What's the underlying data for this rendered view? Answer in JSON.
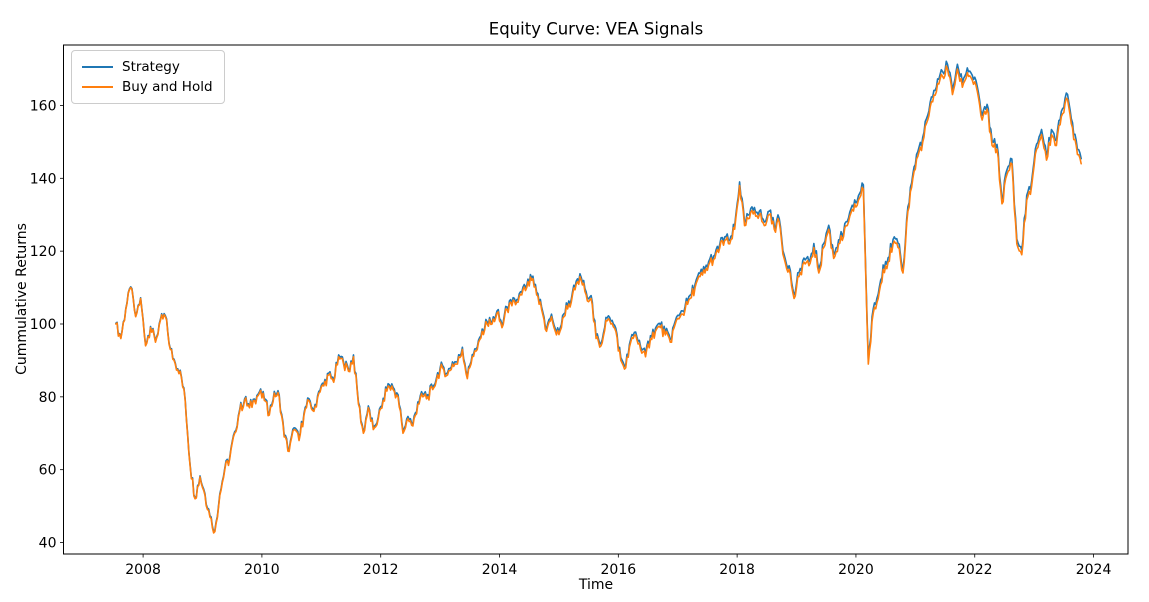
{
  "figure": {
    "background": "#ffffff",
    "spine_color": "#000000",
    "tick_color": "#000000",
    "text_color": "#000000"
  },
  "chart_data": {
    "type": "line",
    "title": "Equity Curve: VEA Signals",
    "xlabel": "Time",
    "ylabel": "Cummulative Returns",
    "xlim": [
      2006.66,
      2024.58
    ],
    "ylim": [
      36.85,
      176.6
    ],
    "x_ticks": [
      2008,
      2010,
      2012,
      2014,
      2016,
      2018,
      2020,
      2022,
      2024
    ],
    "y_ticks": [
      40,
      60,
      80,
      100,
      120,
      140,
      160
    ],
    "grid": false,
    "legend_position": "upper-left",
    "x_start": 2007.5417,
    "x_step_years": 0.083333,
    "series": [
      {
        "name": "Strategy",
        "color": "#1f77b4",
        "values": [
          100.2,
          96.2,
          104.2,
          110.2,
          102.2,
          107.2,
          94.3,
          99.3,
          95.3,
          101.3,
          102.3,
          93.3,
          89.3,
          87.3,
          79.3,
          61.3,
          52.3,
          58.3,
          53.4,
          47.4,
          43.4,
          53.4,
          60.4,
          63.4,
          70.4,
          76.4,
          79.4,
          77.4,
          79.4,
          81.4,
          79.5,
          75.5,
          81.5,
          80.5,
          69.5,
          65.5,
          71.5,
          68.5,
          75.5,
          79.5,
          76.5,
          81.5,
          83.5,
          86.5,
          84.5,
          91.5,
          89.5,
          87.5,
          91.5,
          78.5,
          70.5,
          77.5,
          71.5,
          74.5,
          79.6,
          83.6,
          82.6,
          80.6,
          70.6,
          74.6,
          72.6,
          78.6,
          80.6,
          80.6,
          82.6,
          86.6,
          88.6,
          86.6,
          89.6,
          89.6,
          93.6,
          85.6,
          91.6,
          93.6,
          98.6,
          100.6,
          100.6,
          103.6,
          99.7,
          104.7,
          105.7,
          106.7,
          108.7,
          110.7,
          112.7,
          108.7,
          104.7,
          98.7,
          102.7,
          97.7,
          99.8,
          105.8,
          106.8,
          111.8,
          112.8,
          108.8,
          107.8,
          96.8,
          94.8,
          101.8,
          100.8,
          98.8,
          90.8,
          88.8,
          95.8,
          97.8,
          93.8,
          91.8,
          96.8,
          98.8,
          99.8,
          97.8,
          95.8,
          100.8,
          102.9,
          104.9,
          107.9,
          110.9,
          113.9,
          114.9,
          117.9,
          118.9,
          121.9,
          123.9,
          122.9,
          126.9,
          139,
          128,
          130,
          132,
          131,
          128,
          131,
          127,
          129,
          119,
          116,
          108,
          114.1,
          118.1,
          117.1,
          122.1,
          115.1,
          122.1,
          127.1,
          119.1,
          123.1,
          125.1,
          129.1,
          132.1,
          135.2,
          138.2,
          90.2,
          104.2,
          108.2,
          116.2,
          118.2,
          123.2,
          122.2,
          115.2,
          132.2,
          141.2,
          147.3,
          151.3,
          157.3,
          162.3,
          167.3,
          169.3,
          171.3,
          164.3,
          171.3,
          166.3,
          170.3,
          168.3,
          165.3,
          157.3,
          160.3,
          150.3,
          149.3,
          134.3,
          142.3,
          145.3,
          123.3,
          120.3,
          135.3,
          139.3,
          149.4,
          153.4,
          146.4,
          153.4,
          150.4,
          158.4,
          163.4,
          156.4,
          150.4,
          145.4
        ]
      },
      {
        "name": "Buy and Hold",
        "color": "#ff7f0e",
        "values": [
          100,
          96,
          104,
          110,
          102,
          107,
          94,
          99,
          95,
          101,
          102,
          93,
          89,
          87,
          79,
          61,
          52,
          58,
          53,
          47,
          43,
          53,
          60,
          63,
          70,
          76,
          79,
          77,
          79,
          81,
          79,
          75,
          81,
          80,
          69,
          65,
          71,
          68,
          75,
          79,
          76,
          81,
          83,
          86,
          84,
          91,
          89,
          87,
          91,
          78,
          70,
          77,
          71,
          74,
          79,
          83,
          82,
          80,
          70,
          74,
          72,
          78,
          80,
          80,
          82,
          86,
          88,
          86,
          89,
          89,
          93,
          85,
          91,
          93,
          98,
          100,
          100,
          103,
          99,
          104,
          105,
          106,
          108,
          110,
          112,
          108,
          104,
          98,
          102,
          97,
          99,
          105,
          106,
          111,
          112,
          108,
          107,
          96,
          94,
          101,
          100,
          98,
          90,
          88,
          95,
          97,
          93,
          91,
          96,
          98,
          99,
          97,
          95,
          100,
          102,
          104,
          107,
          110,
          113,
          114,
          117,
          118,
          121,
          123,
          122,
          126,
          138,
          127,
          129,
          131,
          130,
          127,
          130,
          126,
          128,
          118,
          115,
          107,
          113,
          117,
          116,
          121,
          114,
          121,
          126,
          118,
          122,
          124,
          128,
          131,
          134,
          137,
          89,
          103,
          107,
          115,
          117,
          122,
          121,
          114,
          131,
          140,
          146,
          150,
          156,
          161,
          166,
          168,
          170,
          163,
          170,
          165,
          169,
          167,
          164,
          156,
          159,
          149,
          148,
          133,
          141,
          144,
          122,
          119,
          134,
          138,
          148,
          152,
          145,
          152,
          149,
          157,
          162,
          155,
          149,
          144
        ]
      }
    ]
  }
}
